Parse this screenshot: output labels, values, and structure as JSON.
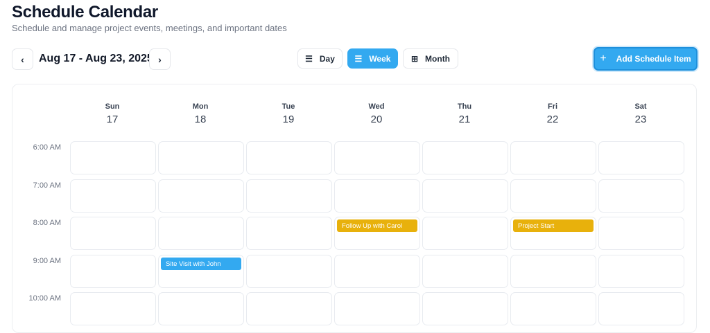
{
  "header": {
    "title": "Schedule Calendar",
    "subtitle": "Schedule and manage project events, meetings, and important dates"
  },
  "toolbar": {
    "prev_icon": "chevron-left-icon",
    "next_icon": "chevron-right-icon",
    "prev": "‹",
    "next": "›",
    "range": "Aug 17 - Aug 23, 2025",
    "views": [
      {
        "label": "Day",
        "icon": "list-icon",
        "active": false
      },
      {
        "label": "Week",
        "icon": "list-icon",
        "active": true
      },
      {
        "label": "Month",
        "icon": "grid-icon",
        "active": false
      }
    ],
    "add_label": "Add Schedule Item",
    "add_icon": "plus-icon"
  },
  "days": [
    {
      "name": "Sun",
      "date": "17"
    },
    {
      "name": "Mon",
      "date": "18"
    },
    {
      "name": "Tue",
      "date": "19"
    },
    {
      "name": "Wed",
      "date": "20"
    },
    {
      "name": "Thu",
      "date": "21"
    },
    {
      "name": "Fri",
      "date": "22"
    },
    {
      "name": "Sat",
      "date": "23"
    }
  ],
  "times": [
    "6:00 AM",
    "7:00 AM",
    "8:00 AM",
    "9:00 AM",
    "10:00 AM"
  ],
  "events": [
    {
      "title": "Follow Up with Carol",
      "day": "Wed",
      "time": "8:00 AM",
      "color": "#e8b10c"
    },
    {
      "title": "Project Start",
      "day": "Fri",
      "time": "8:00 AM",
      "color": "#e8b10c"
    },
    {
      "title": "Site Visit with John",
      "day": "Mon",
      "time": "9:00 AM",
      "color": "#33a9f0"
    }
  ],
  "colors": {
    "accent": "#33a9f0",
    "milestone": "#e8b10c"
  }
}
